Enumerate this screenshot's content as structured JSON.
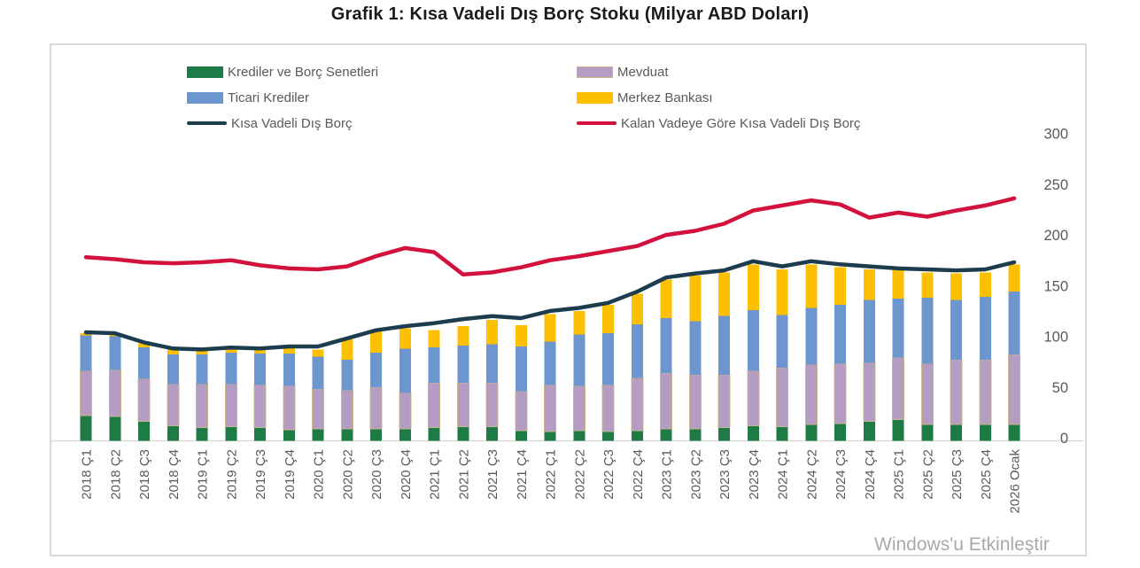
{
  "title": "Grafik 1: Kısa Vadeli Dış Borç Stoku (Milyar ABD Doları)",
  "watermark": "Windows'u Etkinleştir",
  "colors": {
    "krediler_green": "#1e7b45",
    "mevduat_purple": "#b49cc3",
    "mevduat_border": "#c9b48c",
    "ticari_blue": "#6d95ce",
    "merkez_yellow": "#fdc000",
    "toplam_navy": "#1d3c4e",
    "kalan_red": "#d2113c",
    "axis_text_gray": "#595959",
    "frame_gray": "#d9d9d9"
  },
  "legend": {
    "col1": [
      {
        "label": "Krediler ve Borç Senetleri",
        "color": "#1e7b45",
        "type": "box"
      },
      {
        "label": "Ticari Krediler",
        "color": "#6d95ce",
        "type": "box"
      },
      {
        "label": "Kısa Vadeli Dış Borç",
        "color": "#1d3c4e",
        "type": "line"
      }
    ],
    "col2": [
      {
        "label": "Mevduat",
        "color": "#b49cc3",
        "type": "box"
      },
      {
        "label": "Merkez Bankası",
        "color": "#fdc000",
        "type": "box"
      },
      {
        "label": "Kalan Vadeye Göre Kısa Vadeli Dış Borç",
        "color": "#d2113c",
        "type": "line"
      }
    ]
  },
  "chart_data": {
    "type": "bar",
    "stacked": true,
    "grid": false,
    "legend_position": "top",
    "ylim": [
      0,
      300
    ],
    "yticks": [
      0,
      50,
      100,
      150,
      200,
      250,
      300
    ],
    "xlabel": "",
    "ylabel": "",
    "categories": [
      "2018 Ç1",
      "2018 Ç2",
      "2018 Ç3",
      "2018 Ç4",
      "2019 Ç1",
      "2019 Ç2",
      "2019 Ç3",
      "2019 Ç4",
      "2020 Ç1",
      "2020 Ç2",
      "2020 Ç3",
      "2020 Ç4",
      "2021 Ç1",
      "2021 Ç2",
      "2021 Ç3",
      "2021 Ç4",
      "2022 Ç1",
      "2022 Ç2",
      "2022 Ç3",
      "2022 Ç4",
      "2023 Ç1",
      "2023 Ç2",
      "2023 Ç3",
      "2023 Ç4",
      "2024 Ç1",
      "2024 Ç2",
      "2024 Ç3",
      "2024 Ç4",
      "2025 Ç1",
      "2025 Ç2",
      "2025 Ç3",
      "2025 Ç4",
      "2026 Ocak"
    ],
    "series": [
      {
        "name": "Krediler ve Borç Senetleri",
        "type": "bar",
        "color": "#1e7b45",
        "values": [
          25,
          24,
          19,
          15,
          13,
          14,
          13,
          11,
          12,
          12,
          12,
          12,
          13,
          14,
          14,
          10,
          9,
          10,
          9,
          10,
          12,
          12,
          13,
          15,
          14,
          16,
          17,
          19,
          21,
          16,
          16,
          16,
          16
        ]
      },
      {
        "name": "Mevduat",
        "type": "bar",
        "color": "#b49cc3",
        "border": "#c9b48c",
        "values": [
          44,
          46,
          42,
          41,
          43,
          42,
          42,
          43,
          39,
          38,
          41,
          35,
          44,
          43,
          43,
          39,
          46,
          44,
          46,
          52,
          55,
          53,
          52,
          54,
          58,
          59,
          59,
          58,
          61,
          60,
          64,
          64,
          69
        ]
      },
      {
        "name": "Ticari Krediler",
        "type": "bar",
        "color": "#6d95ce",
        "values": [
          35,
          33,
          31,
          29,
          29,
          31,
          31,
          32,
          32,
          30,
          34,
          44,
          35,
          37,
          38,
          44,
          43,
          51,
          51,
          53,
          54,
          53,
          58,
          60,
          52,
          56,
          58,
          62,
          58,
          65,
          59,
          62,
          62
        ]
      },
      {
        "name": "Merkez Bankası",
        "type": "bar",
        "color": "#fdc000",
        "values": [
          2,
          2,
          4,
          5,
          5,
          5,
          5,
          6,
          7,
          20,
          21,
          20,
          17,
          19,
          24,
          21,
          27,
          23,
          28,
          30,
          38,
          45,
          43,
          45,
          45,
          43,
          37,
          30,
          28,
          25,
          26,
          24,
          27
        ]
      },
      {
        "name": "Kısa Vadeli Dış Borç",
        "type": "line",
        "color": "#1d3c4e",
        "values": [
          107,
          106,
          97,
          91,
          90,
          92,
          91,
          93,
          93,
          101,
          109,
          113,
          116,
          120,
          123,
          121,
          128,
          131,
          136,
          147,
          161,
          165,
          168,
          177,
          172,
          177,
          174,
          172,
          170,
          169,
          168,
          169,
          176
        ]
      },
      {
        "name": "Kalan Vadeye Göre Kısa Vadeli Dış Borç",
        "type": "line",
        "color": "#d2113c",
        "values": [
          181,
          179,
          176,
          175,
          176,
          178,
          173,
          170,
          169,
          172,
          182,
          190,
          186,
          164,
          166,
          171,
          178,
          182,
          187,
          192,
          203,
          207,
          214,
          227,
          232,
          237,
          233,
          220,
          225,
          221,
          227,
          232,
          239
        ]
      }
    ]
  }
}
